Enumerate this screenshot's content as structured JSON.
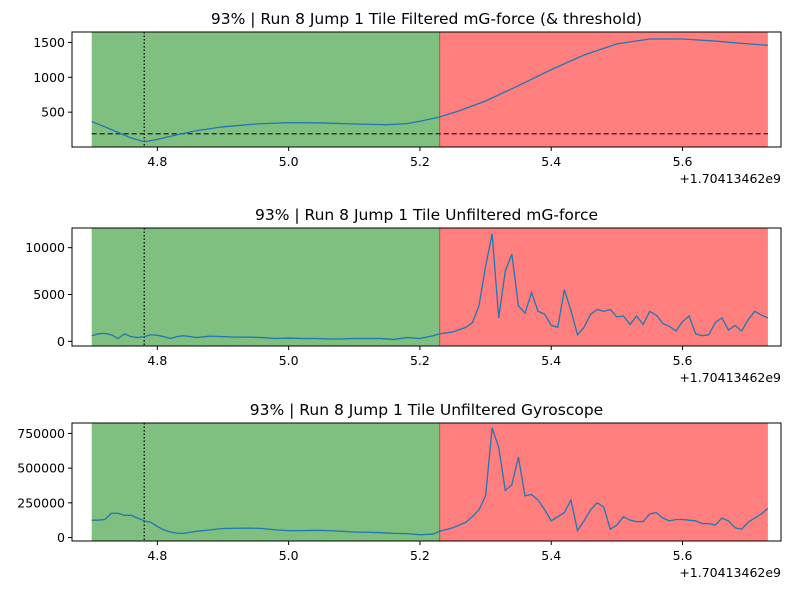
{
  "chart_data": [
    {
      "type": "line",
      "title": "93% | Run 8 Jump 1 Tile Filtered mG-force (& threshold)",
      "x_offset_label": "+1.70413462e9",
      "xlim": [
        4.67,
        5.75
      ],
      "ylim": [
        0,
        1650
      ],
      "x_ticks": [
        4.8,
        5.0,
        5.2,
        5.4,
        5.6
      ],
      "x_tick_labels": [
        "4.8",
        "5.0",
        "5.2",
        "5.4",
        "5.6"
      ],
      "y_ticks": [
        500,
        1000,
        1500
      ],
      "y_tick_labels": [
        "500",
        "1000",
        "1500"
      ],
      "regions": [
        {
          "x0": 4.7,
          "x1": 5.23,
          "color": "#7fbf7f"
        },
        {
          "x0": 5.23,
          "x1": 5.73,
          "color": "#ff7f7f"
        }
      ],
      "vline": 4.78,
      "threshold": 190,
      "line_color": "#1f77b4",
      "x": [
        4.7,
        4.72,
        4.74,
        4.76,
        4.78,
        4.8,
        4.83,
        4.86,
        4.9,
        4.95,
        5.0,
        5.05,
        5.1,
        5.15,
        5.18,
        5.2,
        5.23,
        5.26,
        5.3,
        5.35,
        5.4,
        5.45,
        5.5,
        5.55,
        5.6,
        5.65,
        5.7,
        5.73
      ],
      "values": [
        365,
        290,
        210,
        130,
        75,
        110,
        175,
        235,
        290,
        330,
        350,
        345,
        330,
        320,
        335,
        370,
        430,
        520,
        660,
        880,
        1110,
        1320,
        1480,
        1550,
        1550,
        1520,
        1480,
        1460
      ]
    },
    {
      "type": "line",
      "title": "93% | Run 8 Jump 1  Tile Unfiltered mG-force",
      "x_offset_label": "+1.70413462e9",
      "xlim": [
        4.67,
        5.75
      ],
      "ylim": [
        -500,
        12100
      ],
      "x_ticks": [
        4.8,
        5.0,
        5.2,
        5.4,
        5.6
      ],
      "x_tick_labels": [
        "4.8",
        "5.0",
        "5.2",
        "5.4",
        "5.6"
      ],
      "y_ticks": [
        0,
        5000,
        10000
      ],
      "y_tick_labels": [
        "0",
        "5000",
        "10000"
      ],
      "regions": [
        {
          "x0": 4.7,
          "x1": 5.23,
          "color": "#7fbf7f"
        },
        {
          "x0": 5.23,
          "x1": 5.73,
          "color": "#ff7f7f"
        }
      ],
      "vline": 4.78,
      "line_color": "#1f77b4",
      "x": [
        4.7,
        4.71,
        4.72,
        4.73,
        4.74,
        4.75,
        4.76,
        4.77,
        4.78,
        4.79,
        4.8,
        4.81,
        4.82,
        4.83,
        4.84,
        4.85,
        4.86,
        4.88,
        4.9,
        4.92,
        4.94,
        4.96,
        4.98,
        5.0,
        5.02,
        5.04,
        5.06,
        5.08,
        5.1,
        5.12,
        5.14,
        5.16,
        5.18,
        5.2,
        5.22,
        5.23,
        5.25,
        5.27,
        5.28,
        5.29,
        5.3,
        5.31,
        5.32,
        5.33,
        5.34,
        5.35,
        5.36,
        5.37,
        5.38,
        5.39,
        5.4,
        5.41,
        5.42,
        5.43,
        5.44,
        5.45,
        5.46,
        5.47,
        5.48,
        5.49,
        5.5,
        5.51,
        5.52,
        5.53,
        5.54,
        5.55,
        5.56,
        5.57,
        5.58,
        5.59,
        5.6,
        5.61,
        5.62,
        5.63,
        5.64,
        5.65,
        5.66,
        5.67,
        5.68,
        5.69,
        5.7,
        5.71,
        5.72,
        5.73
      ],
      "values": [
        600,
        800,
        850,
        700,
        300,
        800,
        500,
        400,
        500,
        700,
        650,
        500,
        300,
        500,
        600,
        500,
        400,
        550,
        500,
        450,
        450,
        400,
        300,
        350,
        300,
        300,
        250,
        250,
        300,
        300,
        300,
        200,
        400,
        300,
        600,
        800,
        1000,
        1500,
        2000,
        3800,
        8000,
        11500,
        2500,
        7500,
        9300,
        3800,
        3000,
        5200,
        3200,
        2900,
        1700,
        1500,
        5500,
        3300,
        700,
        1500,
        2900,
        3400,
        3200,
        3400,
        2600,
        2700,
        1800,
        2700,
        1800,
        3200,
        2800,
        1900,
        1600,
        1100,
        2100,
        2700,
        800,
        600,
        700,
        2000,
        2500,
        1200,
        1700,
        1100,
        2300,
        3200,
        2800,
        2500
      ]
    },
    {
      "type": "line",
      "title": "93% | Run 8 Jump 1  Tile Unfiltered Gyroscope",
      "x_offset_label": "+1.70413462e9",
      "xlim": [
        4.67,
        5.75
      ],
      "ylim": [
        -25000,
        825000
      ],
      "x_ticks": [
        4.8,
        5.0,
        5.2,
        5.4,
        5.6
      ],
      "x_tick_labels": [
        "4.8",
        "5.0",
        "5.2",
        "5.4",
        "5.6"
      ],
      "y_ticks": [
        0,
        250000,
        500000,
        750000
      ],
      "y_tick_labels": [
        "0",
        "250000",
        "500000",
        "750000"
      ],
      "regions": [
        {
          "x0": 4.7,
          "x1": 5.23,
          "color": "#7fbf7f"
        },
        {
          "x0": 5.23,
          "x1": 5.73,
          "color": "#ff7f7f"
        }
      ],
      "vline": 4.78,
      "line_color": "#1f77b4",
      "x": [
        4.7,
        4.71,
        4.72,
        4.73,
        4.74,
        4.75,
        4.76,
        4.77,
        4.78,
        4.79,
        4.8,
        4.81,
        4.82,
        4.83,
        4.84,
        4.85,
        4.86,
        4.88,
        4.9,
        4.92,
        4.94,
        4.96,
        4.98,
        5.0,
        5.02,
        5.04,
        5.06,
        5.08,
        5.1,
        5.12,
        5.14,
        5.16,
        5.18,
        5.2,
        5.22,
        5.23,
        5.25,
        5.27,
        5.28,
        5.29,
        5.3,
        5.31,
        5.32,
        5.33,
        5.34,
        5.35,
        5.36,
        5.37,
        5.38,
        5.39,
        5.4,
        5.41,
        5.42,
        5.43,
        5.44,
        5.45,
        5.46,
        5.47,
        5.48,
        5.49,
        5.5,
        5.51,
        5.52,
        5.53,
        5.54,
        5.55,
        5.56,
        5.57,
        5.58,
        5.59,
        5.6,
        5.61,
        5.62,
        5.63,
        5.64,
        5.65,
        5.66,
        5.67,
        5.68,
        5.69,
        5.7,
        5.71,
        5.72,
        5.73
      ],
      "values": [
        125000,
        125000,
        130000,
        175000,
        175000,
        160000,
        160000,
        140000,
        120000,
        110000,
        80000,
        55000,
        40000,
        32000,
        30000,
        38000,
        45000,
        55000,
        65000,
        67000,
        68000,
        65000,
        55000,
        50000,
        50000,
        52000,
        50000,
        45000,
        40000,
        38000,
        35000,
        30000,
        28000,
        20000,
        25000,
        45000,
        70000,
        110000,
        150000,
        200000,
        300000,
        790000,
        650000,
        340000,
        380000,
        580000,
        300000,
        310000,
        270000,
        200000,
        120000,
        150000,
        180000,
        270000,
        50000,
        120000,
        200000,
        250000,
        220000,
        60000,
        90000,
        150000,
        125000,
        115000,
        115000,
        170000,
        180000,
        140000,
        120000,
        130000,
        130000,
        125000,
        120000,
        100000,
        100000,
        90000,
        140000,
        120000,
        70000,
        60000,
        110000,
        140000,
        170000,
        210000
      ]
    }
  ]
}
